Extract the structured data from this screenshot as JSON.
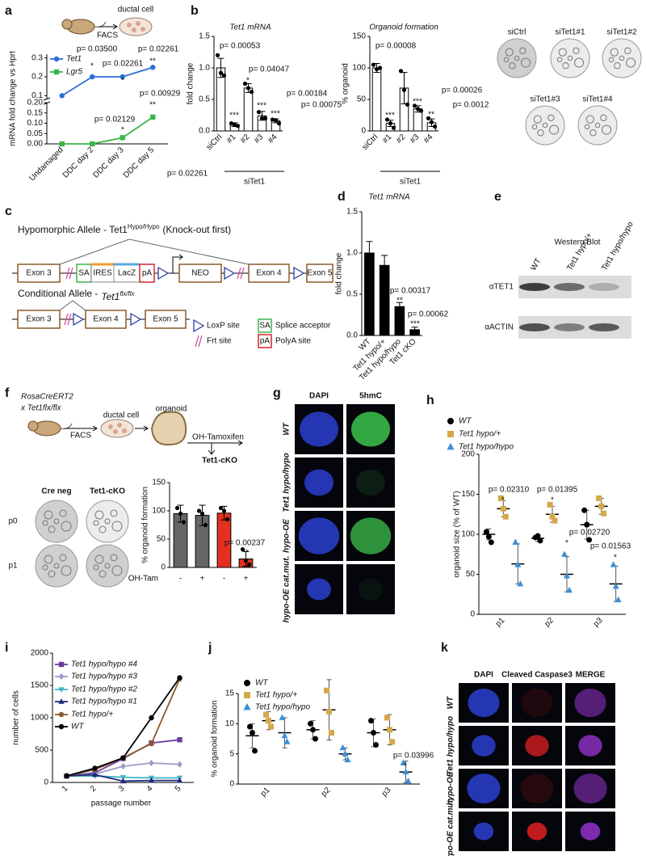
{
  "panel_labels": [
    "a",
    "b",
    "c",
    "d",
    "e",
    "f",
    "g",
    "h",
    "i",
    "j",
    "k"
  ],
  "schematic_a": [
    "ductal cell",
    "FACS"
  ],
  "chart_data": [
    {
      "type": "line",
      "ylabel": "mRNA fold change vs Hprt",
      "categories": [
        "Undamaged",
        "DDC day 2",
        "DDC day 3",
        "DDC day 5"
      ],
      "series": [
        {
          "name": "Tet1",
          "color": "#2a6fd6",
          "marker": "circle",
          "axis": "y2",
          "values": [
            0.1,
            0.2,
            0.2,
            0.25
          ]
        },
        {
          "name": "Lgr5",
          "color": "#3cb54a",
          "marker": "square",
          "values": [
            0.0,
            0.0,
            0.03,
            0.13
          ]
        }
      ],
      "ylim": [
        0,
        0.2
      ],
      "yticks": [
        {
          "value": 0,
          "label": "0.00"
        },
        0.05,
        {
          "value": 0.1,
          "label": "0.10"
        },
        0.15,
        {
          "value": 0.2,
          "label": "0.20"
        }
      ],
      "y2lim": [
        0.08,
        0.32
      ],
      "y2ticks": [
        0.1,
        0.2,
        0.3
      ],
      "annotations": [
        "p= 0.03500",
        "*",
        "p= 0.02261",
        "*",
        "p= 0.02261",
        "**",
        "p= 0.02129",
        "*",
        "p= 0.00929",
        "**",
        "p= 0.02261"
      ]
    },
    {
      "type": "bar",
      "title": "Tet1 mRNA",
      "ylabel": "fold change",
      "group_label": "siTet1",
      "categories": [
        "siCtrl",
        "#1",
        "#2",
        "#3",
        "#4"
      ],
      "values": [
        1.0,
        0.1,
        0.68,
        0.24,
        0.16
      ],
      "errors": [
        0.15,
        0.03,
        0.07,
        0.07,
        0.03
      ],
      "points": [
        [
          1.2,
          0.92,
          0.88
        ],
        [
          0.12,
          0.1,
          0.08
        ],
        [
          0.75,
          0.68,
          0.62
        ],
        [
          0.3,
          0.2,
          0.2
        ],
        [
          0.18,
          0.17,
          0.12
        ]
      ],
      "color": "#ffffff",
      "ylim": [
        0,
        1.5
      ],
      "yticks": [
        {
          "value": 0,
          "label": "0.0"
        },
        0.5,
        {
          "value": 1,
          "label": "1.0"
        },
        1.5
      ],
      "annotations": [
        "p= 0.00053",
        "***",
        "p= 0.04047",
        "*",
        "p= 0.00184",
        "***",
        "p= 0.00075",
        "***"
      ]
    },
    {
      "type": "bar",
      "title": "Organoid formation",
      "ylabel": "% organoid",
      "group_label": "siTet1",
      "categories": [
        "siCtrl",
        "#1",
        "#2",
        "#3",
        "#4"
      ],
      "values": [
        100,
        12,
        68,
        35,
        13
      ],
      "errors": [
        7,
        5,
        25,
        5,
        6
      ],
      "points": [
        [
          105,
          98,
          100
        ],
        [
          18,
          12,
          5
        ],
        [
          95,
          65,
          42
        ],
        [
          40,
          35,
          32
        ],
        [
          20,
          14,
          7
        ]
      ],
      "color": "#ffffff",
      "ylim": [
        0,
        150
      ],
      "yticks": [
        0,
        50,
        100,
        150
      ],
      "annotations": [
        "p= 0.00008",
        "***",
        "p= 0.00026",
        "***",
        "p= 0.0012",
        "**"
      ]
    },
    {
      "type": "bar",
      "title": "Tet1 mRNA",
      "ylabel": "fold change",
      "categories": [
        "WT",
        "Tet1 hypo/+",
        "Tet1 hypo/hypo",
        "Tet1 cKO"
      ],
      "values": [
        1.0,
        0.85,
        0.35,
        0.07
      ],
      "errors": [
        0.14,
        0.12,
        0.05,
        0.03
      ],
      "color": "#000000",
      "ylim": [
        0,
        1.5
      ],
      "yticks": [
        {
          "value": 0,
          "label": "0.0"
        },
        0.5,
        {
          "value": 1,
          "label": "1.0"
        },
        1.5
      ],
      "annotations": [
        "p= 0.00317",
        "**",
        "p= 0.00062",
        "***"
      ]
    },
    {
      "type": "bar",
      "ylabel": "% organoid formation",
      "xlabel": "OH-Tam",
      "categories": [
        "-",
        "+",
        "-",
        "+"
      ],
      "values": [
        95,
        92,
        96,
        15
      ],
      "errors": [
        15,
        18,
        12,
        13
      ],
      "points": [
        [
          105,
          95,
          80
        ],
        [
          100,
          95,
          75
        ],
        [
          105,
          100,
          85
        ],
        [
          32,
          12,
          5
        ]
      ],
      "colors": [
        "#666666",
        "#666666",
        "#e53020",
        "#e53020"
      ],
      "ylim": [
        0,
        150
      ],
      "yticks": [
        0,
        50,
        100,
        150
      ],
      "annotations": [
        "p= 0.00237",
        "**"
      ]
    },
    {
      "type": "dot",
      "ylabel": "organoid size (% of WT)",
      "categories": [
        "p1",
        "p2",
        "p3"
      ],
      "series": [
        {
          "name": "WT",
          "color": "#000000",
          "marker": "circle",
          "values": [
            100,
            95,
            112
          ],
          "errors": [
            7,
            4,
            18
          ],
          "points": [
            [
              103,
              97,
              90
            ],
            [
              96,
              98,
              92
            ],
            [
              130,
              112,
              93
            ]
          ]
        },
        {
          "name": "Tet1 hypo/+",
          "color": "#d4a94a",
          "marker": "square",
          "values": [
            132,
            125,
            135
          ],
          "errors": [
            10,
            10,
            10
          ],
          "points": [
            [
              145,
              132,
              122
            ],
            [
              137,
              122,
              117
            ],
            [
              145,
              135,
              126
            ]
          ]
        },
        {
          "name": "Tet1 hypo/hypo",
          "color": "#3d8fd9",
          "marker": "triangle",
          "values": [
            63,
            50,
            38
          ],
          "errors": [
            25,
            22,
            22
          ],
          "points": [
            [
              90,
              62,
              38
            ],
            [
              75,
              48,
              30
            ],
            [
              62,
              35,
              18
            ]
          ]
        }
      ],
      "ylim": [
        0,
        200
      ],
      "yticks": [
        0,
        50,
        100,
        150,
        200
      ],
      "annotations": [
        "p= 0.02310",
        "*",
        "p= 0.01395",
        "*",
        "p= 0.02720",
        "*",
        "p= 0.01563",
        "*"
      ]
    },
    {
      "type": "line",
      "ylabel": "number of cells",
      "xlabel": "passage number",
      "categories": [
        "1",
        "2",
        "3",
        "4",
        "5"
      ],
      "series": [
        {
          "name": "Tet1 hypo/hypo #4",
          "color": "#6a3d9a",
          "marker": "square",
          "values": [
            100,
            150,
            370,
            610,
            660
          ]
        },
        {
          "name": "Tet1 hypo/hypo #3",
          "color": "#9e9ac8",
          "marker": "diamond",
          "values": [
            100,
            130,
            250,
            300,
            280
          ]
        },
        {
          "name": "Tet1 hypo/hypo #2",
          "color": "#41b6c4",
          "marker": "triangle-down",
          "values": [
            100,
            100,
            80,
            70,
            70
          ]
        },
        {
          "name": "Tet1 hypo/hypo #1",
          "color": "#1f2a7a",
          "marker": "triangle",
          "values": [
            100,
            120,
            20,
            30,
            30
          ]
        },
        {
          "name": "Tet1 hypo/+",
          "color": "#8c5a2b",
          "marker": "circle",
          "values": [
            100,
            200,
            380,
            600,
            1600
          ]
        },
        {
          "name": "WT",
          "color": "#000000",
          "marker": "circle",
          "values": [
            100,
            220,
            380,
            1000,
            1620
          ]
        }
      ],
      "ylim": [
        0,
        2000
      ],
      "yticks": [
        0,
        500,
        1000,
        1500,
        2000
      ]
    },
    {
      "type": "dot",
      "ylabel": "% organoid formation",
      "categories": [
        "p1",
        "p2",
        "p3"
      ],
      "series": [
        {
          "name": "WT",
          "color": "#000000",
          "marker": "circle",
          "values": [
            8,
            9,
            8.5
          ],
          "errors": [
            2,
            1.5,
            2.3
          ],
          "points": [
            [
              9.5,
              8.5,
              5.5
            ],
            [
              10,
              9,
              7.5
            ],
            [
              10.5,
              8.5,
              6.5
            ]
          ]
        },
        {
          "name": "Tet1 hypo/+",
          "color": "#d4a94a",
          "marker": "square",
          "values": [
            10.5,
            12.3,
            9
          ],
          "errors": [
            1.5,
            5,
            2.5
          ],
          "points": [
            [
              11.5,
              10.5,
              9.5
            ],
            [
              15.5,
              12,
              8.5
            ],
            [
              11,
              9,
              7
            ]
          ]
        },
        {
          "name": "Tet1 hypo/hypo",
          "color": "#3d8fd9",
          "marker": "triangle",
          "values": [
            8.5,
            5,
            2
          ],
          "errors": [
            2.5,
            1,
            1.8
          ],
          "points": [
            [
              11,
              8,
              7
            ],
            [
              6,
              5,
              4
            ],
            [
              3.5,
              2,
              0.5
            ]
          ]
        }
      ],
      "ylim": [
        0,
        15
      ],
      "yticks": [
        0,
        5,
        10,
        15
      ],
      "annotations": [
        "p= 0.03996",
        "*"
      ]
    }
  ],
  "images_b": [
    "siCtrl",
    "siTet1#1",
    "siTet1#2",
    "siTet1#3",
    "siTet1#4"
  ],
  "diagram_c": {
    "title1": [
      "Hypomorphic Allele - Tet1",
      "Hypo/Hypo",
      "(Knock-out first)"
    ],
    "allele1": [
      "Exon 3",
      "SA",
      "IRES",
      "LacZ",
      "pA",
      "NEO",
      "Exon 4",
      "Exon 5"
    ],
    "title2": [
      "Conditional Allele -",
      "Tet1",
      "flx/flx"
    ],
    "allele2": [
      "Exon 3",
      "Exon 4",
      "Exon 5"
    ],
    "legend": [
      "LoxP site",
      "SA",
      "Splice acceptor",
      "Frt site",
      "pA",
      "PolyA site"
    ]
  },
  "blot_e": {
    "title": "Western Blot",
    "lanes": [
      "WT",
      "Tet1 hypo/+",
      "Tet1 hypo/hypo"
    ],
    "rows": [
      "αTET1",
      "αACTIN"
    ]
  },
  "schematic_f": {
    "strain": [
      "RosaCreERT2",
      "x Tet1flx/flx"
    ],
    "steps": [
      "FACS",
      "ductal cell",
      "organoid",
      "OH-Tamoxifen",
      "Tet1-cKO"
    ],
    "images": [
      "Cre neg",
      "Tet1-cKO",
      "p0",
      "p1"
    ]
  },
  "micro_g": {
    "columns": [
      "DAPI",
      "5hmC"
    ],
    "rows": [
      "WT",
      "Tet1 hypo/hypo",
      "hypo-OE",
      "hypo-OE cat.mut."
    ]
  },
  "micro_k": {
    "columns": [
      "DAPI",
      "Cleaved Caspase3",
      "MERGE"
    ],
    "rows": [
      "WT",
      "Tet1 hypo/hypo",
      "hypo-OE",
      "hypo-OE cat.mut."
    ]
  }
}
